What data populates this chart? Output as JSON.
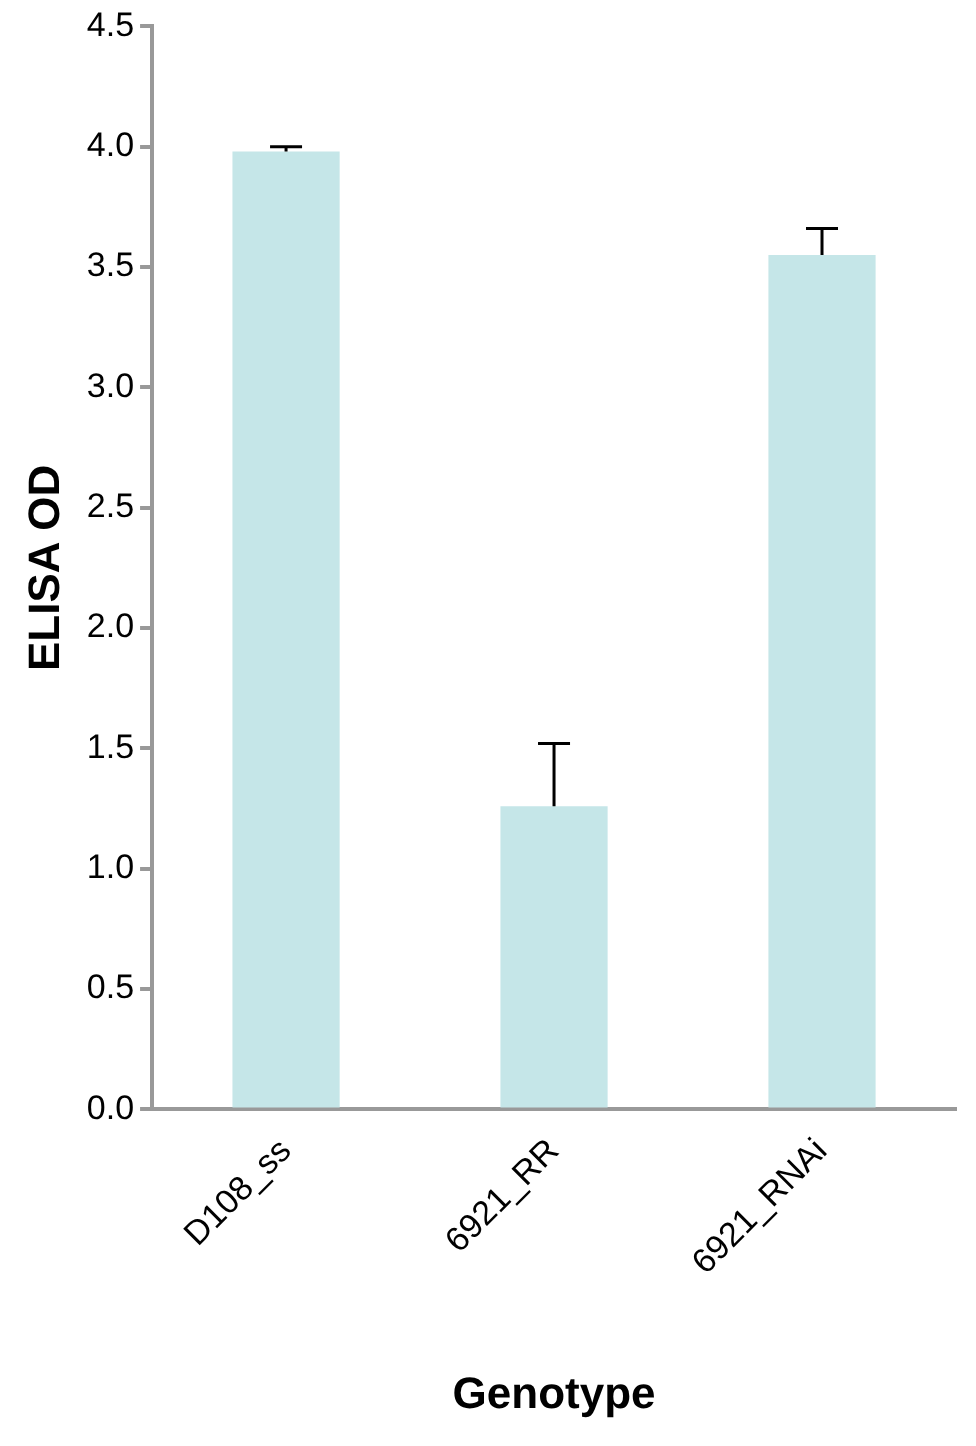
{
  "chart_data": {
    "type": "bar",
    "xlabel": "Genotype",
    "ylabel": "ELISA OD",
    "categories": [
      "D108_ss",
      "6921_RR",
      "6921_RNAi"
    ],
    "values": [
      3.98,
      1.26,
      3.55
    ],
    "errors": [
      [
        3.98,
        4.0
      ],
      [
        1.26,
        1.52
      ],
      [
        3.55,
        3.66
      ]
    ],
    "color": "#c5e6e8",
    "ylim": [
      0,
      4.5
    ],
    "yticks": [
      {
        "value": 0,
        "label": "0.0"
      },
      {
        "value": 0.5,
        "label": "0.5"
      },
      {
        "value": 1,
        "label": "1.0"
      },
      {
        "value": 1.5,
        "label": "1.5"
      },
      {
        "value": 2,
        "label": "2.0"
      },
      {
        "value": 2.5,
        "label": "2.5"
      },
      {
        "value": 3,
        "label": "3.0"
      },
      {
        "value": 3.5,
        "label": "3.5"
      },
      {
        "value": 4,
        "label": "4.0"
      },
      {
        "value": 4.5,
        "label": "4.5"
      }
    ],
    "grid": false,
    "legend": false
  }
}
